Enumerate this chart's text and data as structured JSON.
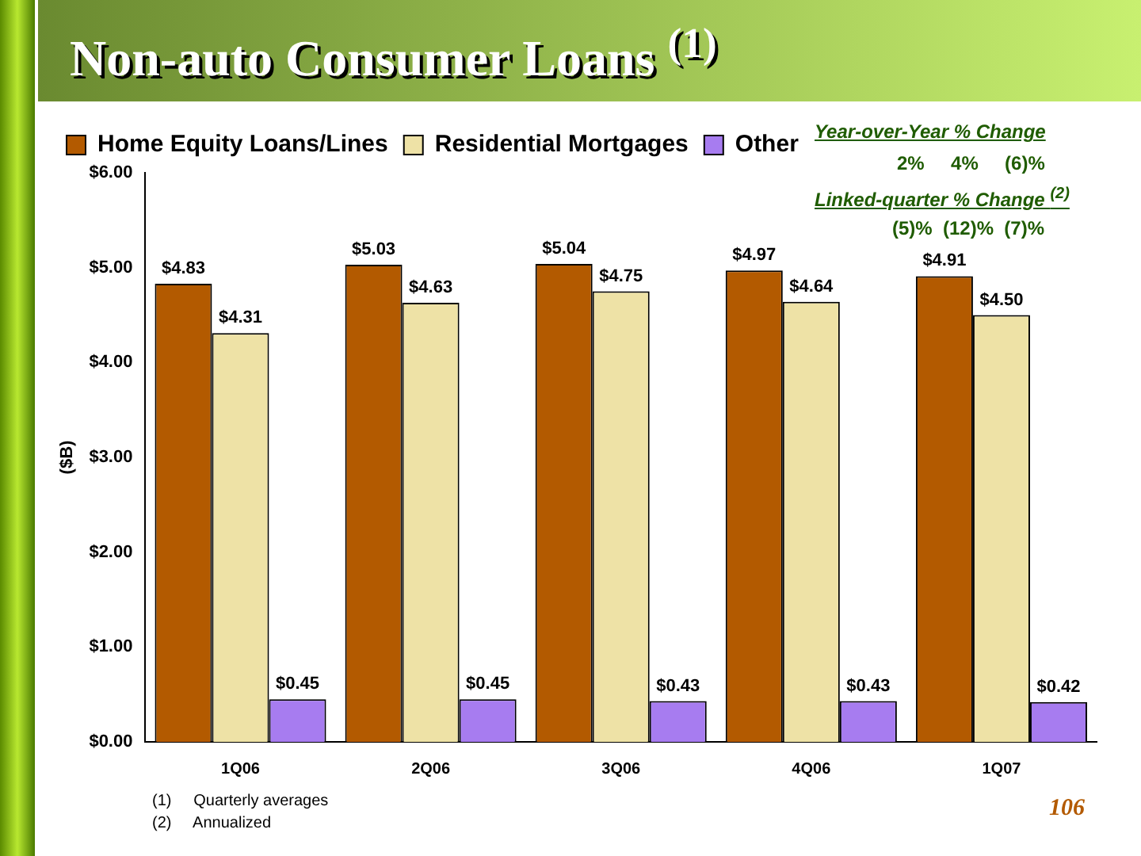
{
  "chart_data": {
    "type": "bar",
    "title": "Non-auto Consumer Loans $^{(1)}$",
    "ylabel": "($B)",
    "categories": [
      "1Q06",
      "2Q06",
      "3Q06",
      "4Q06",
      "1Q07"
    ],
    "series": [
      {
        "name": "Home Equity Loans/Lines",
        "color": "#b35a00",
        "values": [
          4.83,
          5.03,
          5.04,
          4.97,
          4.91
        ],
        "value_labels": [
          "$4.83",
          "$5.03",
          "$5.04",
          "$4.97",
          "$4.91"
        ]
      },
      {
        "name": "Residential Mortgages",
        "color": "#eee2a6",
        "values": [
          4.31,
          4.63,
          4.75,
          4.64,
          4.5
        ],
        "value_labels": [
          "$4.31",
          "$4.63",
          "$4.75",
          "$4.64",
          "$4.50"
        ]
      },
      {
        "name": "Other",
        "color": "#a77cf0",
        "values": [
          0.45,
          0.45,
          0.43,
          0.43,
          0.42
        ],
        "value_labels": [
          "$0.45",
          "$0.45",
          "$0.43",
          "$0.43",
          "$0.42"
        ]
      }
    ],
    "ylim": [
      0,
      6
    ],
    "yticks": [
      {
        "value": 0,
        "label": "$0.00"
      },
      {
        "value": 1,
        "label": "$1.00"
      },
      {
        "value": 2,
        "label": "$2.00"
      },
      {
        "value": 3,
        "label": "$3.00"
      },
      {
        "value": 4,
        "label": "$4.00"
      },
      {
        "value": 5,
        "label": "$5.00"
      },
      {
        "value": 6,
        "label": "$6.00"
      }
    ],
    "legend": "top left",
    "annotations": [
      "Year-over-Year % Change",
      "2%     4%     (6)%",
      "Linked-quarter % Change $^{(2)}$",
      "(5)%  (12)%  (7)%",
      "(1)     Quarterly averages",
      "(2)     Annualized",
      "106"
    ]
  }
}
